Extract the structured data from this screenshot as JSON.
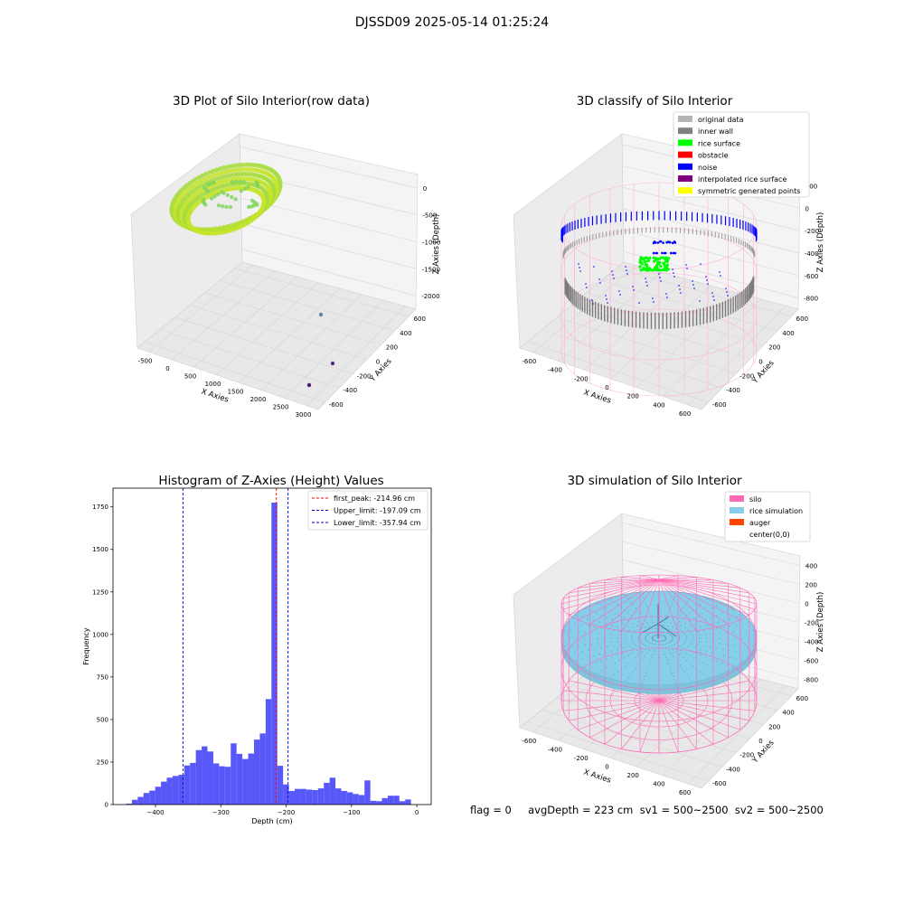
{
  "suptitle": "DJSSD09 2025-05-14 01:25:24",
  "footer": "flag = 0     avgDepth = 223 cm  sv1 = 500~2500  sv2 = 500~2500",
  "colors": {
    "hist_bar": "#4f4ff8",
    "first_peak": "#ff0000",
    "upper": "#0000cc",
    "lower": "#0000cc",
    "rice_surface": "#00ff00",
    "noise": "#0000ff",
    "inner_wall": "#808080",
    "silo": "#ff69b4",
    "rice_sim": "#87ceeb",
    "auger": "#ff4500"
  },
  "chart_data": [
    {
      "type": "scatter",
      "title": "3D Plot of Silo Interior(row data)",
      "xlabel": "X Axies",
      "ylabel": "Y Axies",
      "zlabel": "Z Axies (Depth)",
      "x_ticks": [
        "-500",
        "0",
        "500",
        "1000",
        "1500",
        "2000",
        "2500",
        "3000"
      ],
      "y_ticks": [
        "600",
        "400",
        "200",
        "0",
        "-200",
        "-400",
        "-600"
      ],
      "z_ticks": [
        "0",
        "-500",
        "-1000",
        "-1500",
        "-2000"
      ],
      "series": [
        {
          "name": "",
          "description_points": "ring",
          "color": "#c8e628"
        }
      ],
      "outliers": [
        {
          "x": 2600,
          "y": 100,
          "z": -2100
        },
        {
          "x": 3000,
          "y": -450,
          "z": -2100
        },
        {
          "x": 3100,
          "y": -600,
          "z": -2300
        }
      ],
      "view": "3d"
    },
    {
      "type": "scatter",
      "title": "3D classify of Silo Interior",
      "xlabel": "X Axies",
      "ylabel": "Y Axies",
      "zlabel": "Z Axies (Depth)",
      "x_ticks": [
        "-600",
        "-400",
        "-200",
        "0",
        "200",
        "400",
        "600"
      ],
      "y_ticks": [
        "600",
        "400",
        "200",
        "0",
        "-200",
        "-400",
        "-600"
      ],
      "z_ticks": [
        "200",
        "0",
        "-200",
        "-400",
        "-600",
        "-800"
      ],
      "legend": [
        {
          "label": "original data",
          "color": "#b4b4b4"
        },
        {
          "label": "inner wall",
          "color": "#808080"
        },
        {
          "label": "rice surface",
          "color": "#00ff00"
        },
        {
          "label": "obstacle",
          "color": "#ff0000"
        },
        {
          "label": "noise",
          "color": "#0000ff"
        },
        {
          "label": "interpolated rice surface",
          "color": "#800080"
        },
        {
          "label": "symmetric generated points",
          "color": "#ffff00"
        }
      ],
      "legend_position": "top-right",
      "view": "3d"
    },
    {
      "type": "bar",
      "title": "Histogram of Z-Axies (Height) Values",
      "xlabel": "Depth (cm)",
      "ylabel": "Frequency",
      "xlim": [
        -465,
        22
      ],
      "ylim": [
        0,
        1860
      ],
      "x_ticks": [
        -400,
        -300,
        -200,
        -100,
        0
      ],
      "y_ticks": [
        0,
        250,
        500,
        750,
        1000,
        1250,
        1500,
        1750
      ],
      "bin_start": -445,
      "bin_width": 8.9,
      "values": [
        5,
        28,
        45,
        68,
        82,
        105,
        135,
        158,
        168,
        175,
        230,
        245,
        320,
        342,
        312,
        242,
        225,
        222,
        360,
        298,
        268,
        300,
        382,
        418,
        620,
        1775,
        228,
        118,
        80,
        92,
        92,
        88,
        85,
        95,
        128,
        158,
        95,
        80,
        72,
        62,
        56,
        142,
        22,
        20,
        38,
        52,
        52,
        20,
        30
      ],
      "vlines": [
        {
          "name": "first_peak",
          "label": "first_peak: -214.96 cm",
          "x": -214.96,
          "color": "#ff0000"
        },
        {
          "name": "upper_limit",
          "label": "Upper_limit: -197.09 cm",
          "x": -197.09,
          "color": "#0000cc"
        },
        {
          "name": "lower_limit",
          "label": "Lower_limit: -357.94 cm",
          "x": -357.94,
          "color": "#0000cc"
        }
      ],
      "legend_position": "top-right"
    },
    {
      "type": "scatter",
      "title": "3D simulation of Silo Interior",
      "xlabel": "X Axies",
      "ylabel": "Y Axies",
      "zlabel": "Z Axies (Depth)",
      "x_ticks": [
        "-600",
        "-400",
        "-200",
        "0",
        "200",
        "400",
        "600"
      ],
      "y_ticks": [
        "600",
        "400",
        "200",
        "0",
        "-200",
        "-400",
        "-600"
      ],
      "z_ticks": [
        "400",
        "200",
        "0",
        "-200",
        "-400",
        "-600",
        "-800"
      ],
      "legend": [
        {
          "label": "silo",
          "color": "#ff69b4"
        },
        {
          "label": "rice simulation",
          "color": "#87ceeb"
        },
        {
          "label": "auger",
          "color": "#ff4500"
        },
        {
          "label": "center(0,0)",
          "color": "#ffffff"
        }
      ],
      "legend_position": "top-right",
      "view": "3d"
    }
  ]
}
